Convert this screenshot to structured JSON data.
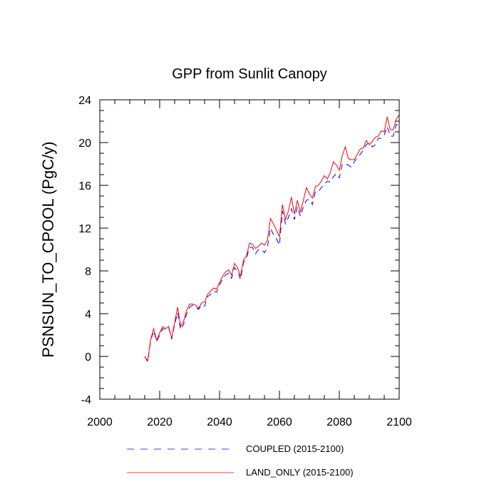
{
  "chart_data": {
    "type": "line",
    "title": "GPP from Sunlit Canopy",
    "xlabel": "",
    "ylabel": "PSNSUN_TO_CPOOL  (PgC/y)",
    "xlim": [
      2000,
      2100
    ],
    "ylim": [
      -4,
      24
    ],
    "xticks": [
      2000,
      2020,
      2040,
      2060,
      2080,
      2100
    ],
    "yticks": [
      -4,
      0,
      4,
      8,
      12,
      16,
      20,
      24
    ],
    "x": [
      2015,
      2016,
      2017,
      2018,
      2019,
      2020,
      2021,
      2022,
      2023,
      2024,
      2025,
      2026,
      2027,
      2028,
      2029,
      2030,
      2031,
      2032,
      2033,
      2034,
      2035,
      2036,
      2037,
      2038,
      2039,
      2040,
      2041,
      2042,
      2043,
      2044,
      2045,
      2046,
      2047,
      2048,
      2049,
      2050,
      2051,
      2052,
      2053,
      2054,
      2055,
      2056,
      2057,
      2058,
      2059,
      2060,
      2061,
      2062,
      2063,
      2064,
      2065,
      2066,
      2067,
      2068,
      2069,
      2070,
      2071,
      2072,
      2073,
      2074,
      2075,
      2076,
      2077,
      2078,
      2079,
      2080,
      2081,
      2082,
      2083,
      2084,
      2085,
      2086,
      2087,
      2088,
      2089,
      2090,
      2091,
      2092,
      2093,
      2094,
      2095,
      2096,
      2097,
      2098,
      2099,
      2100
    ],
    "series": [
      {
        "name": "COUPLED (2015-2100)",
        "color": "#0000ff",
        "style": "dashed",
        "values": [
          0.0,
          -0.5,
          1.5,
          2.4,
          1.4,
          2.0,
          2.6,
          2.5,
          2.7,
          1.6,
          3.0,
          4.1,
          2.5,
          3.0,
          4.0,
          4.6,
          4.8,
          4.6,
          4.4,
          4.8,
          4.7,
          5.6,
          5.8,
          6.1,
          6.0,
          6.7,
          7.2,
          7.6,
          7.8,
          7.3,
          8.3,
          8.0,
          7.2,
          8.8,
          9.2,
          10.2,
          10.2,
          9.6,
          10.0,
          10.0,
          9.7,
          10.2,
          12.0,
          11.4,
          11.0,
          10.4,
          13.6,
          12.4,
          13.0,
          13.8,
          12.8,
          14.0,
          13.1,
          14.0,
          14.6,
          14.7,
          14.2,
          15.4,
          15.4,
          15.8,
          16.1,
          16.4,
          16.3,
          16.8,
          17.1,
          16.7,
          18.0,
          18.0,
          17.9,
          17.7,
          18.2,
          18.6,
          18.9,
          19.3,
          19.8,
          20.0,
          19.6,
          19.8,
          20.4,
          20.4,
          20.7,
          21.5,
          20.6,
          20.6,
          21.7,
          21.6
        ]
      },
      {
        "name": "LAND_ONLY (2015-2100)",
        "color": "#ff0000",
        "style": "solid",
        "values": [
          0.0,
          -0.4,
          1.6,
          2.6,
          1.5,
          2.2,
          2.8,
          2.6,
          2.8,
          1.7,
          3.2,
          4.6,
          2.8,
          3.3,
          4.3,
          4.9,
          4.9,
          4.8,
          4.5,
          5.0,
          5.1,
          5.8,
          6.1,
          6.4,
          6.3,
          6.9,
          7.5,
          7.9,
          8.1,
          7.6,
          8.7,
          8.3,
          7.5,
          9.0,
          9.4,
          10.6,
          10.5,
          10.1,
          10.3,
          10.6,
          10.4,
          10.9,
          12.9,
          12.4,
          11.8,
          11.2,
          14.2,
          12.8,
          13.6,
          14.9,
          13.3,
          14.6,
          13.5,
          14.6,
          15.8,
          15.2,
          14.8,
          15.9,
          16.0,
          16.4,
          16.9,
          16.6,
          17.2,
          18.2,
          17.9,
          17.4,
          18.8,
          19.6,
          18.5,
          18.4,
          18.4,
          18.9,
          19.4,
          19.5,
          20.2,
          19.8,
          20.1,
          20.5,
          20.6,
          21.1,
          21.0,
          22.4,
          21.2,
          21.2,
          22.2,
          22.6
        ]
      }
    ],
    "legend": [
      {
        "label": "COUPLED (2015-2100)",
        "style": "dashed",
        "color": "#0000ff"
      },
      {
        "label": "LAND_ONLY (2015-2100)",
        "style": "solid",
        "color": "#ff0000"
      }
    ],
    "legend_position": "bottom-center",
    "grid": false
  }
}
